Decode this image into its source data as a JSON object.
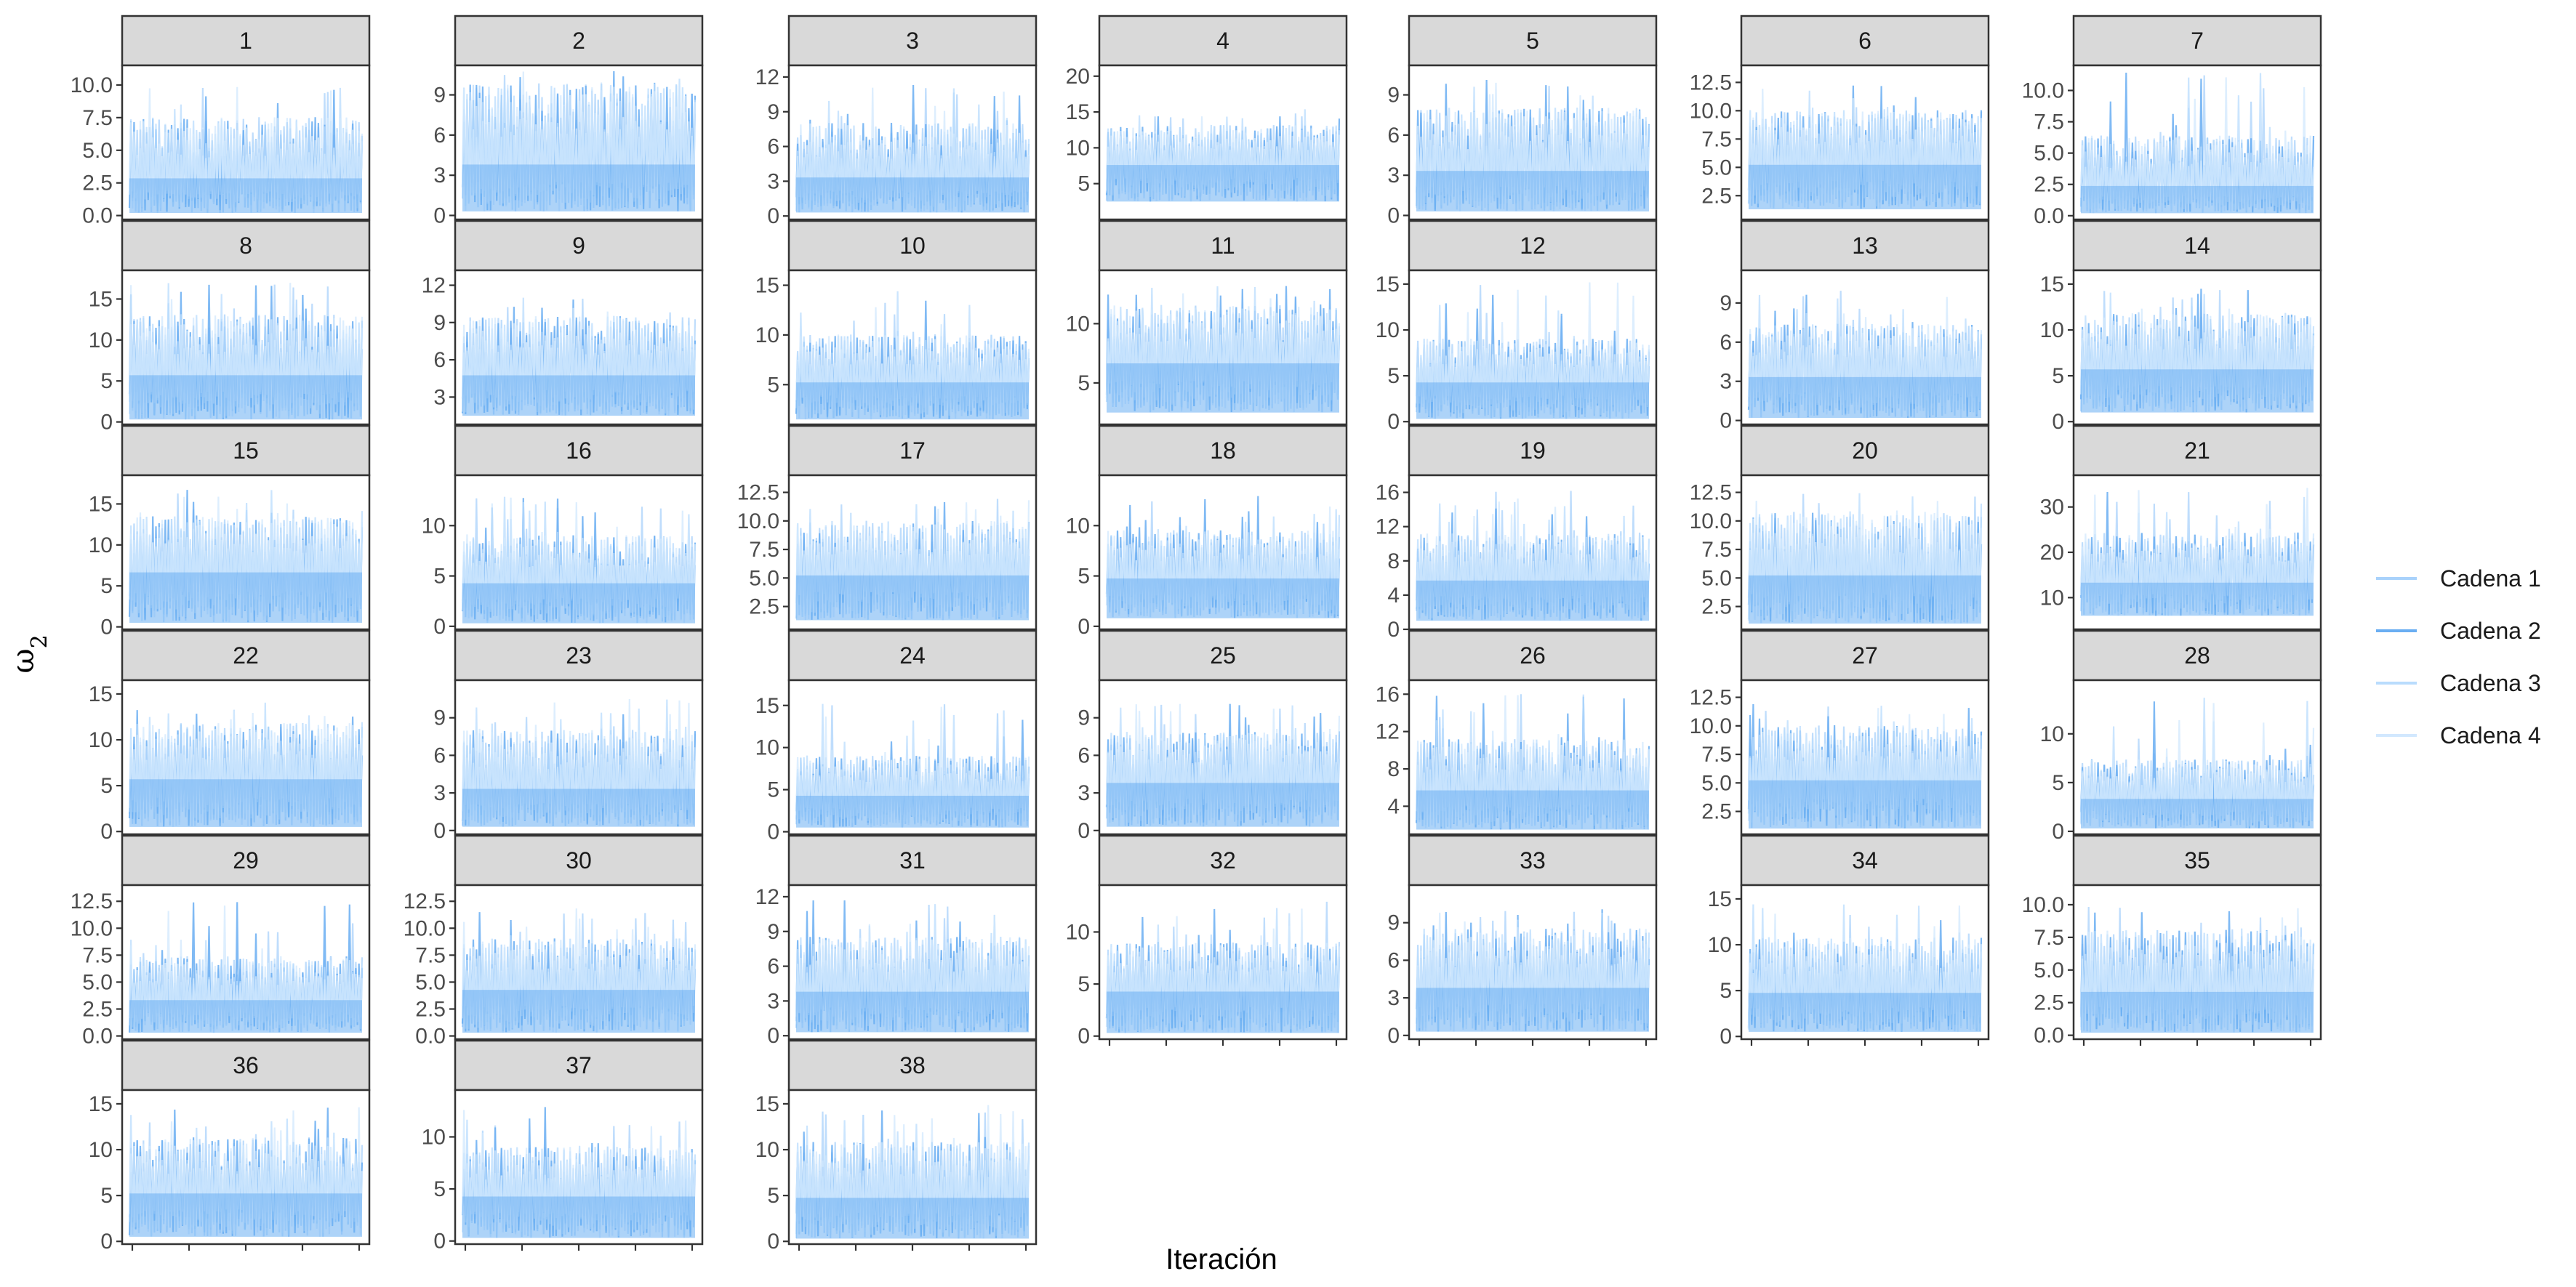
{
  "chart_data": {
    "type": "line",
    "kind": "MCMC trace plots, faceted",
    "xlabel": "Iteración",
    "ylabel": "ω",
    "ylabel_subscript": "2",
    "legend": {
      "position": "right",
      "entries": [
        {
          "name": "Cadena 1",
          "color": "#a9d2fb"
        },
        {
          "name": "Cadena 2",
          "color": "#6aaef2"
        },
        {
          "name": "Cadena 3",
          "color": "#b9dcfd"
        },
        {
          "name": "Cadena 4",
          "color": "#d2e8fe"
        }
      ]
    },
    "x_tick_count": 5,
    "series_names": [
      "Cadena 1",
      "Cadena 2",
      "Cadena 3",
      "Cadena 4"
    ],
    "panels": [
      {
        "id": "1",
        "ylim": [
          -0.3,
          11.5
        ],
        "yticks": [
          "0.0",
          "2.5",
          "5.0",
          "7.5",
          "10.0"
        ],
        "ytick_values": [
          0,
          2.5,
          5,
          7.5,
          10
        ],
        "band": {
          "low": 0.2,
          "mid": 3.0,
          "high": 6.5,
          "max": 10.2
        }
      },
      {
        "id": "2",
        "ylim": [
          -0.3,
          11.2
        ],
        "yticks": [
          "0",
          "3",
          "6",
          "9"
        ],
        "ytick_values": [
          0,
          3,
          6,
          9
        ],
        "band": {
          "low": 0.3,
          "mid": 4.0,
          "high": 8.5,
          "max": 10.8
        }
      },
      {
        "id": "3",
        "ylim": [
          -0.3,
          13.0
        ],
        "yticks": [
          "0",
          "3",
          "6",
          "9",
          "12"
        ],
        "ytick_values": [
          0,
          3,
          6,
          9,
          12
        ],
        "band": {
          "low": 0.3,
          "mid": 3.5,
          "high": 7.0,
          "max": 11.5
        }
      },
      {
        "id": "4",
        "ylim": [
          0.0,
          21.5
        ],
        "yticks": [
          "5",
          "10",
          "15",
          "20"
        ],
        "ytick_values": [
          5,
          10,
          15,
          20
        ],
        "band": {
          "low": 2.5,
          "mid": 8.0,
          "high": 12.0,
          "max": 15.5
        }
      },
      {
        "id": "5",
        "ylim": [
          -0.3,
          11.2
        ],
        "yticks": [
          "0",
          "3",
          "6",
          "9"
        ],
        "ytick_values": [
          0,
          3,
          6,
          9
        ],
        "band": {
          "low": 0.3,
          "mid": 3.5,
          "high": 7.0,
          "max": 10.5
        }
      },
      {
        "id": "6",
        "ylim": [
          0.4,
          14.0
        ],
        "yticks": [
          "2.5",
          "5.0",
          "7.5",
          "10.0",
          "12.5"
        ],
        "ytick_values": [
          2.5,
          5,
          7.5,
          10,
          12.5
        ],
        "band": {
          "low": 1.3,
          "mid": 5.5,
          "high": 9.0,
          "max": 12.5
        }
      },
      {
        "id": "7",
        "ylim": [
          -0.3,
          12.0
        ],
        "yticks": [
          "0.0",
          "2.5",
          "5.0",
          "7.5",
          "10.0"
        ],
        "ytick_values": [
          0,
          2.5,
          5,
          7.5,
          10
        ],
        "band": {
          "low": 0.2,
          "mid": 2.5,
          "high": 5.5,
          "max": 11.5
        }
      },
      {
        "id": "8",
        "ylim": [
          -0.3,
          18.5
        ],
        "yticks": [
          "0",
          "5",
          "10",
          "15"
        ],
        "ytick_values": [
          0,
          5,
          10,
          15
        ],
        "band": {
          "low": 0.3,
          "mid": 6.0,
          "high": 11.5,
          "max": 17.0
        }
      },
      {
        "id": "9",
        "ylim": [
          0.8,
          13.2
        ],
        "yticks": [
          "3",
          "6",
          "9",
          "12"
        ],
        "ytick_values": [
          3,
          6,
          9,
          12
        ],
        "band": {
          "low": 1.5,
          "mid": 5.0,
          "high": 8.5,
          "max": 11.5
        }
      },
      {
        "id": "10",
        "ylim": [
          1.0,
          16.5
        ],
        "yticks": [
          "5",
          "10",
          "15"
        ],
        "ytick_values": [
          5,
          10,
          15
        ],
        "band": {
          "low": 1.5,
          "mid": 5.5,
          "high": 9.0,
          "max": 14.5
        }
      },
      {
        "id": "11",
        "ylim": [
          1.5,
          14.5
        ],
        "yticks": [
          "5",
          "10"
        ],
        "ytick_values": [
          5,
          10
        ],
        "band": {
          "low": 2.5,
          "mid": 7.0,
          "high": 10.5,
          "max": 13.5
        }
      },
      {
        "id": "12",
        "ylim": [
          -0.3,
          16.5
        ],
        "yticks": [
          "0",
          "5",
          "10",
          "15"
        ],
        "ytick_values": [
          0,
          5,
          10,
          15
        ],
        "band": {
          "low": 0.3,
          "mid": 4.5,
          "high": 8.0,
          "max": 15.5
        }
      },
      {
        "id": "13",
        "ylim": [
          -0.3,
          11.5
        ],
        "yticks": [
          "0",
          "3",
          "6",
          "9"
        ],
        "ytick_values": [
          0,
          3,
          6,
          9
        ],
        "band": {
          "low": 0.2,
          "mid": 3.5,
          "high": 6.5,
          "max": 10.0
        }
      },
      {
        "id": "14",
        "ylim": [
          -0.3,
          16.5
        ],
        "yticks": [
          "0",
          "5",
          "10",
          "15"
        ],
        "ytick_values": [
          0,
          5,
          10,
          15
        ],
        "band": {
          "low": 1.0,
          "mid": 6.0,
          "high": 10.5,
          "max": 14.5
        }
      },
      {
        "id": "15",
        "ylim": [
          -0.3,
          18.5
        ],
        "yticks": [
          "0",
          "5",
          "10",
          "15"
        ],
        "ytick_values": [
          0,
          5,
          10,
          15
        ],
        "band": {
          "low": 0.5,
          "mid": 7.0,
          "high": 12.0,
          "max": 17.0
        }
      },
      {
        "id": "16",
        "ylim": [
          -0.3,
          15.0
        ],
        "yticks": [
          "0",
          "5",
          "10"
        ],
        "ytick_values": [
          0,
          5,
          10
        ],
        "band": {
          "low": 0.3,
          "mid": 4.5,
          "high": 8.0,
          "max": 13.0
        }
      },
      {
        "id": "17",
        "ylim": [
          0.5,
          14.0
        ],
        "yticks": [
          "2.5",
          "5.0",
          "7.5",
          "10.0",
          "12.5"
        ],
        "ytick_values": [
          2.5,
          5,
          7.5,
          10,
          12.5
        ],
        "band": {
          "low": 1.3,
          "mid": 5.5,
          "high": 9.0,
          "max": 12.0
        }
      },
      {
        "id": "18",
        "ylim": [
          -0.3,
          15.0
        ],
        "yticks": [
          "0",
          "5",
          "10"
        ],
        "ytick_values": [
          0,
          5,
          10
        ],
        "band": {
          "low": 0.8,
          "mid": 5.0,
          "high": 8.5,
          "max": 13.5
        }
      },
      {
        "id": "19",
        "ylim": [
          0.0,
          18.0
        ],
        "yticks": [
          "0",
          "4",
          "8",
          "12",
          "16"
        ],
        "ytick_values": [
          0,
          4,
          8,
          12,
          16
        ],
        "band": {
          "low": 1.0,
          "mid": 6.0,
          "high": 10.0,
          "max": 16.5
        }
      },
      {
        "id": "20",
        "ylim": [
          0.5,
          14.0
        ],
        "yticks": [
          "2.5",
          "5.0",
          "7.5",
          "10.0",
          "12.5"
        ],
        "ytick_values": [
          2.5,
          5,
          7.5,
          10,
          12.5
        ],
        "band": {
          "low": 1.0,
          "mid": 5.5,
          "high": 9.5,
          "max": 12.5
        }
      },
      {
        "id": "21",
        "ylim": [
          3.0,
          37.0
        ],
        "yticks": [
          "10",
          "20",
          "30"
        ],
        "ytick_values": [
          10,
          20,
          30
        ],
        "band": {
          "low": 6.0,
          "mid": 14.0,
          "high": 22.0,
          "max": 34.5
        }
      },
      {
        "id": "22",
        "ylim": [
          -0.3,
          16.5
        ],
        "yticks": [
          "0",
          "5",
          "10",
          "15"
        ],
        "ytick_values": [
          0,
          5,
          10,
          15
        ],
        "band": {
          "low": 0.5,
          "mid": 6.0,
          "high": 10.5,
          "max": 14.5
        }
      },
      {
        "id": "23",
        "ylim": [
          -0.3,
          12.0
        ],
        "yticks": [
          "0",
          "3",
          "6",
          "9"
        ],
        "ytick_values": [
          0,
          3,
          6,
          9
        ],
        "band": {
          "low": 0.3,
          "mid": 3.5,
          "high": 7.0,
          "max": 10.5
        }
      },
      {
        "id": "24",
        "ylim": [
          -0.3,
          18.0
        ],
        "yticks": [
          "0",
          "5",
          "10",
          "15"
        ],
        "ytick_values": [
          0,
          5,
          10,
          15
        ],
        "band": {
          "low": 0.5,
          "mid": 4.5,
          "high": 8.0,
          "max": 16.0
        }
      },
      {
        "id": "25",
        "ylim": [
          -0.3,
          12.0
        ],
        "yticks": [
          "0",
          "3",
          "6",
          "9"
        ],
        "ytick_values": [
          0,
          3,
          6,
          9
        ],
        "band": {
          "low": 0.3,
          "mid": 4.0,
          "high": 7.0,
          "max": 10.5
        }
      },
      {
        "id": "26",
        "ylim": [
          1.0,
          17.5
        ],
        "yticks": [
          "4",
          "8",
          "12",
          "16"
        ],
        "ytick_values": [
          4,
          8,
          12,
          16
        ],
        "band": {
          "low": 1.5,
          "mid": 6.0,
          "high": 10.0,
          "max": 16.0
        }
      },
      {
        "id": "27",
        "ylim": [
          0.5,
          14.0
        ],
        "yticks": [
          "2.5",
          "5.0",
          "7.5",
          "10.0",
          "12.5"
        ],
        "ytick_values": [
          2.5,
          5,
          7.5,
          10,
          12.5
        ],
        "band": {
          "low": 1.0,
          "mid": 5.5,
          "high": 9.0,
          "max": 12.0
        }
      },
      {
        "id": "28",
        "ylim": [
          -0.3,
          15.5
        ],
        "yticks": [
          "0",
          "5",
          "10"
        ],
        "ytick_values": [
          0,
          5,
          10
        ],
        "band": {
          "low": 0.3,
          "mid": 3.5,
          "high": 6.5,
          "max": 14.0
        }
      },
      {
        "id": "29",
        "ylim": [
          -0.3,
          14.0
        ],
        "yticks": [
          "0.0",
          "2.5",
          "5.0",
          "7.5",
          "10.0",
          "12.5"
        ],
        "ytick_values": [
          0,
          2.5,
          5,
          7.5,
          10,
          12.5
        ],
        "band": {
          "low": 0.3,
          "mid": 3.5,
          "high": 6.5,
          "max": 12.5
        }
      },
      {
        "id": "30",
        "ylim": [
          -0.3,
          14.0
        ],
        "yticks": [
          "0.0",
          "2.5",
          "5.0",
          "7.5",
          "10.0",
          "12.5"
        ],
        "ytick_values": [
          0,
          2.5,
          5,
          7.5,
          10,
          12.5
        ],
        "band": {
          "low": 0.3,
          "mid": 4.5,
          "high": 8.0,
          "max": 12.0
        }
      },
      {
        "id": "31",
        "ylim": [
          -0.3,
          13.0
        ],
        "yticks": [
          "0",
          "3",
          "6",
          "9",
          "12"
        ],
        "ytick_values": [
          0,
          3,
          6,
          9,
          12
        ],
        "band": {
          "low": 0.3,
          "mid": 4.0,
          "high": 7.5,
          "max": 12.0
        }
      },
      {
        "id": "32",
        "ylim": [
          -0.3,
          14.5
        ],
        "yticks": [
          "0",
          "5",
          "10"
        ],
        "ytick_values": [
          0,
          5,
          10
        ],
        "band": {
          "low": 0.3,
          "mid": 4.5,
          "high": 8.0,
          "max": 13.0
        }
      },
      {
        "id": "33",
        "ylim": [
          -0.3,
          12.0
        ],
        "yticks": [
          "0",
          "3",
          "6",
          "9"
        ],
        "ytick_values": [
          0,
          3,
          6,
          9
        ],
        "band": {
          "low": 0.3,
          "mid": 4.0,
          "high": 7.5,
          "max": 10.5
        }
      },
      {
        "id": "34",
        "ylim": [
          -0.3,
          16.5
        ],
        "yticks": [
          "0",
          "5",
          "10",
          "15"
        ],
        "ytick_values": [
          0,
          5,
          10,
          15
        ],
        "band": {
          "low": 0.5,
          "mid": 5.0,
          "high": 9.5,
          "max": 14.5
        }
      },
      {
        "id": "35",
        "ylim": [
          -0.3,
          11.5
        ],
        "yticks": [
          "0.0",
          "2.5",
          "5.0",
          "7.5",
          "10.0"
        ],
        "ytick_values": [
          0,
          2.5,
          5,
          7.5,
          10
        ],
        "band": {
          "low": 0.2,
          "mid": 3.5,
          "high": 7.0,
          "max": 10.0
        }
      },
      {
        "id": "36",
        "ylim": [
          -0.3,
          16.5
        ],
        "yticks": [
          "0",
          "5",
          "10",
          "15"
        ],
        "ytick_values": [
          0,
          5,
          10,
          15
        ],
        "band": {
          "low": 0.5,
          "mid": 5.5,
          "high": 10.0,
          "max": 15.0
        }
      },
      {
        "id": "37",
        "ylim": [
          -0.3,
          14.5
        ],
        "yticks": [
          "0",
          "5",
          "10"
        ],
        "ytick_values": [
          0,
          5,
          10
        ],
        "band": {
          "low": 0.3,
          "mid": 4.5,
          "high": 8.0,
          "max": 13.0
        }
      },
      {
        "id": "38",
        "ylim": [
          -0.3,
          16.5
        ],
        "yticks": [
          "0",
          "5",
          "10",
          "15"
        ],
        "ytick_values": [
          0,
          5,
          10,
          15
        ],
        "band": {
          "low": 0.3,
          "mid": 5.0,
          "high": 9.5,
          "max": 15.0
        }
      }
    ]
  }
}
